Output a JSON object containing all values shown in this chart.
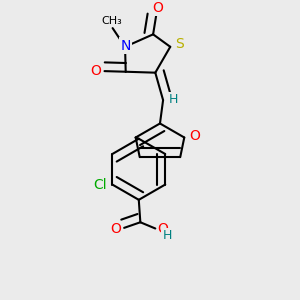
{
  "bg_color": "#ebebeb",
  "atom_colors": {
    "O": "#ff0000",
    "N": "#0000ff",
    "S": "#b8b000",
    "Cl": "#00aa00",
    "H": "#008080"
  },
  "bond_lw": 1.5,
  "font_size": 9,
  "xlim": [
    0.2,
    0.8
  ],
  "ylim": [
    0.05,
    0.97
  ]
}
